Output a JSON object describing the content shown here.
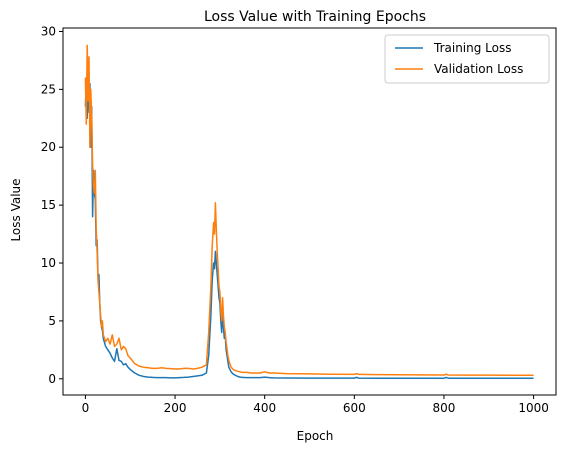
{
  "chart_data": {
    "type": "line",
    "title": "Loss Value with Training Epochs",
    "xlabel": "Epoch",
    "ylabel": "Loss Value",
    "xlim": [
      -50,
      1050
    ],
    "ylim": [
      -1.4,
      30.3
    ],
    "xticks": [
      0,
      200,
      400,
      600,
      800,
      1000
    ],
    "yticks": [
      0,
      5,
      10,
      15,
      20,
      25,
      30
    ],
    "grid": false,
    "legend": "top-right",
    "series": [
      {
        "name": "Training Loss",
        "color": "#1f77b4",
        "x": [
          0,
          2,
          4,
          6,
          8,
          10,
          12,
          14,
          16,
          18,
          20,
          22,
          24,
          26,
          28,
          30,
          32,
          34,
          36,
          38,
          40,
          45,
          50,
          55,
          60,
          65,
          70,
          75,
          80,
          85,
          90,
          95,
          100,
          110,
          120,
          130,
          140,
          150,
          160,
          170,
          180,
          190,
          200,
          210,
          220,
          230,
          240,
          250,
          260,
          270,
          275,
          280,
          283,
          286,
          288,
          290,
          292,
          294,
          296,
          298,
          300,
          302,
          304,
          306,
          308,
          310,
          312,
          314,
          316,
          318,
          320,
          325,
          330,
          335,
          340,
          345,
          350,
          360,
          370,
          380,
          390,
          400,
          410,
          420,
          450,
          500,
          550,
          600,
          605,
          610,
          650,
          700,
          750,
          800,
          805,
          810,
          850,
          900,
          950,
          1000
        ],
        "y": [
          23.5,
          26.0,
          22.5,
          26.5,
          23.0,
          25.5,
          20.0,
          23.5,
          14.0,
          18.0,
          16.0,
          15.5,
          11.5,
          12.0,
          8.8,
          9.0,
          6.5,
          5.0,
          4.5,
          4.2,
          3.5,
          2.8,
          2.5,
          2.2,
          1.8,
          1.5,
          2.6,
          1.6,
          1.5,
          1.2,
          1.3,
          1.0,
          0.8,
          0.5,
          0.3,
          0.2,
          0.15,
          0.12,
          0.1,
          0.1,
          0.1,
          0.08,
          0.08,
          0.1,
          0.12,
          0.15,
          0.2,
          0.25,
          0.3,
          0.5,
          2.0,
          5.5,
          8.5,
          10.0,
          9.5,
          11.0,
          10.0,
          9.0,
          8.0,
          7.0,
          6.5,
          5.0,
          4.0,
          6.0,
          4.5,
          3.5,
          3.8,
          2.5,
          2.0,
          1.5,
          1.0,
          0.6,
          0.4,
          0.3,
          0.2,
          0.15,
          0.12,
          0.1,
          0.1,
          0.1,
          0.1,
          0.15,
          0.1,
          0.08,
          0.07,
          0.06,
          0.06,
          0.06,
          0.12,
          0.06,
          0.05,
          0.05,
          0.05,
          0.05,
          0.12,
          0.05,
          0.05,
          0.05,
          0.05,
          0.05
        ]
      },
      {
        "name": "Validation Loss",
        "color": "#ff7f0e",
        "x": [
          0,
          2,
          4,
          6,
          8,
          10,
          12,
          14,
          16,
          18,
          20,
          22,
          24,
          26,
          28,
          30,
          32,
          34,
          36,
          38,
          40,
          45,
          50,
          55,
          60,
          65,
          70,
          75,
          80,
          85,
          90,
          95,
          100,
          110,
          120,
          130,
          140,
          150,
          160,
          170,
          180,
          190,
          200,
          210,
          220,
          230,
          240,
          250,
          260,
          270,
          275,
          280,
          283,
          286,
          288,
          290,
          292,
          294,
          296,
          298,
          300,
          302,
          304,
          306,
          308,
          310,
          312,
          314,
          316,
          318,
          320,
          325,
          330,
          335,
          340,
          345,
          350,
          360,
          370,
          380,
          390,
          400,
          410,
          420,
          450,
          500,
          550,
          600,
          605,
          610,
          650,
          700,
          750,
          800,
          805,
          810,
          850,
          900,
          950,
          1000
        ],
        "y": [
          26.0,
          22.0,
          28.8,
          24.0,
          27.8,
          20.0,
          25.0,
          22.5,
          18.5,
          16.5,
          16.0,
          18.0,
          13.0,
          11.0,
          8.5,
          7.5,
          6.5,
          5.5,
          4.5,
          5.0,
          3.8,
          3.2,
          3.5,
          3.0,
          3.8,
          2.8,
          3.0,
          3.5,
          2.5,
          2.8,
          2.6,
          2.0,
          1.8,
          1.3,
          1.1,
          1.0,
          0.95,
          0.9,
          0.9,
          0.95,
          0.9,
          0.88,
          0.85,
          0.85,
          0.9,
          0.9,
          0.85,
          0.9,
          1.0,
          1.2,
          4.0,
          8.0,
          11.5,
          13.5,
          12.5,
          15.2,
          13.0,
          11.0,
          9.5,
          8.0,
          7.5,
          6.0,
          5.0,
          7.0,
          5.5,
          4.5,
          4.0,
          3.2,
          2.6,
          2.0,
          1.6,
          1.0,
          0.8,
          0.7,
          0.65,
          0.6,
          0.55,
          0.55,
          0.5,
          0.5,
          0.5,
          0.6,
          0.5,
          0.5,
          0.45,
          0.42,
          0.4,
          0.38,
          0.45,
          0.38,
          0.36,
          0.35,
          0.34,
          0.33,
          0.4,
          0.33,
          0.32,
          0.32,
          0.31,
          0.3
        ]
      }
    ]
  }
}
